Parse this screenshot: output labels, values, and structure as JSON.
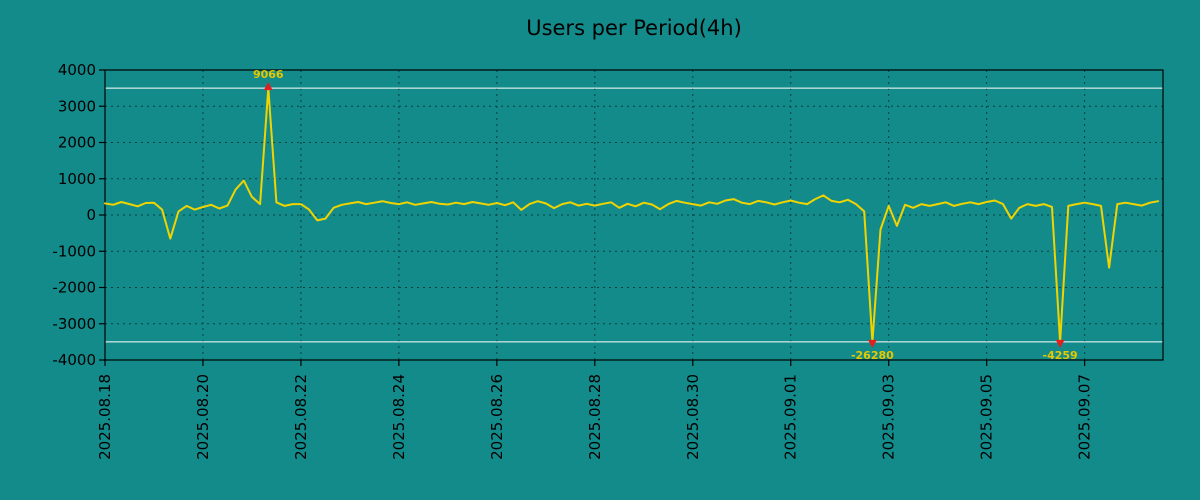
{
  "page": {
    "background": "#148b8b"
  },
  "chart_data": {
    "type": "line",
    "title": "Users per Period(4h)",
    "ylim": [
      -4000,
      4000
    ],
    "yticks": [
      4000,
      3000,
      2000,
      1000,
      0,
      -1000,
      -2000,
      -3000,
      -4000
    ],
    "x_ticks": [
      {
        "day": 0,
        "label": "2025.08.18"
      },
      {
        "day": 2,
        "label": "2025.08.20"
      },
      {
        "day": 4,
        "label": "2025.08.22"
      },
      {
        "day": 6,
        "label": "2025.08.24"
      },
      {
        "day": 8,
        "label": "2025.08.26"
      },
      {
        "day": 10,
        "label": "2025.08.28"
      },
      {
        "day": 12,
        "label": "2025.08.30"
      },
      {
        "day": 14,
        "label": "2025.09.01"
      },
      {
        "day": 16,
        "label": "2025.09.03"
      },
      {
        "day": 18,
        "label": "2025.09.05"
      },
      {
        "day": 20,
        "label": "2025.09.07"
      }
    ],
    "x_total_days": 21.6,
    "points_per_day": 6,
    "interval_hours": 4,
    "clip_value": 3500,
    "grid": true,
    "colors": {
      "line": "#f0d400",
      "marker": "#e02020",
      "grid": "#073f3f",
      "clip_line": "#ffffff",
      "axis": "#000000",
      "annotation_text": "#e6c800"
    },
    "series": [
      {
        "name": "users",
        "values": [
          320,
          280,
          360,
          300,
          240,
          330,
          340,
          150,
          -650,
          100,
          250,
          150,
          220,
          280,
          180,
          260,
          700,
          950,
          500,
          300,
          9066,
          350,
          250,
          300,
          300,
          150,
          -150,
          -100,
          200,
          280,
          320,
          360,
          300,
          340,
          380,
          330,
          300,
          350,
          280,
          320,
          360,
          310,
          290,
          340,
          300,
          360,
          320,
          280,
          330,
          270,
          350,
          140,
          300,
          380,
          320,
          190,
          300,
          350,
          260,
          310,
          260,
          310,
          350,
          200,
          310,
          240,
          340,
          290,
          160,
          300,
          390,
          340,
          300,
          260,
          350,
          310,
          400,
          440,
          340,
          300,
          390,
          350,
          290,
          350,
          400,
          340,
          300,
          440,
          540,
          390,
          350,
          420,
          300,
          100,
          -26280,
          -400,
          250,
          -300,
          280,
          200,
          300,
          250,
          300,
          350,
          250,
          310,
          350,
          300,
          360,
          400,
          300,
          -100,
          200,
          300,
          250,
          300,
          220,
          -4259,
          250,
          300,
          340,
          300,
          250,
          -1450,
          300,
          340,
          300,
          260,
          340,
          380
        ]
      }
    ],
    "annotations": [
      {
        "label": "9066",
        "day": 3.3333,
        "value": 9066,
        "marker": "up"
      },
      {
        "label": "-26280",
        "day": 15.6667,
        "value": -26280,
        "marker": "down"
      },
      {
        "label": "-4259",
        "day": 19.5,
        "value": -4259,
        "marker": "down"
      }
    ]
  }
}
